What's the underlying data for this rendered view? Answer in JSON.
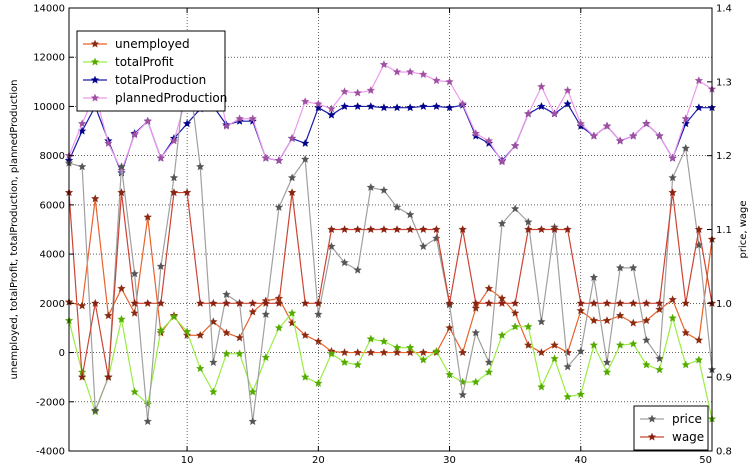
{
  "chart_data": {
    "type": "line",
    "x": [
      1,
      2,
      3,
      4,
      5,
      6,
      7,
      8,
      9,
      10,
      11,
      12,
      13,
      14,
      15,
      16,
      17,
      18,
      19,
      20,
      21,
      22,
      23,
      24,
      25,
      26,
      27,
      28,
      29,
      30,
      31,
      32,
      33,
      34,
      35,
      36,
      37,
      38,
      39,
      40,
      41,
      42,
      43,
      44,
      45,
      46,
      47,
      48,
      49,
      50
    ],
    "xlim": [
      1,
      50
    ],
    "xticks": [
      10,
      20,
      30,
      40,
      50
    ],
    "left_axis": {
      "ylabel": "unemployed, totalProfit, totalProduction, plannedProduction",
      "ylim": [
        -4000,
        14000
      ],
      "yticks": [
        -4000,
        -2000,
        0,
        2000,
        4000,
        6000,
        8000,
        10000,
        12000,
        14000
      ]
    },
    "right_axis": {
      "ylabel": "price, wage",
      "ylim": [
        0.8,
        1.4
      ],
      "yticks": [
        0.8,
        0.9,
        1.0,
        1.1,
        1.2,
        1.3,
        1.4
      ]
    },
    "series": [
      {
        "name": "unemployed",
        "axis": "left",
        "color": "#e8622a",
        "marker_color": "#8b2a10",
        "values": [
          2050,
          1900,
          6250,
          1500,
          2600,
          1600,
          5500,
          800,
          1500,
          700,
          700,
          1250,
          800,
          600,
          1650,
          2100,
          2200,
          1200,
          700,
          450,
          50,
          0,
          0,
          0,
          0,
          0,
          0,
          0,
          0,
          1000,
          0,
          1800,
          2600,
          2200,
          1600,
          300,
          0,
          300,
          0,
          1700,
          1300,
          1300,
          1500,
          1200,
          1300,
          1750,
          2150,
          800,
          500,
          4600
        ]
      },
      {
        "name": "totalProfit",
        "axis": "left",
        "color": "#99ee44",
        "marker_color": "#55aa00",
        "values": [
          1300,
          -800,
          -2400,
          -1000,
          1350,
          -1600,
          -2100,
          900,
          1450,
          850,
          -650,
          -1600,
          -50,
          -50,
          -1600,
          -200,
          1000,
          1600,
          -1000,
          -1250,
          -50,
          -400,
          -500,
          550,
          450,
          200,
          200,
          -300,
          50,
          -900,
          -1200,
          -1200,
          -800,
          700,
          1050,
          1050,
          -1400,
          -250,
          -1800,
          -1700,
          300,
          -800,
          300,
          350,
          -500,
          -700,
          1400,
          -500,
          -300,
          -2700
        ]
      },
      {
        "name": "totalProduction",
        "axis": "left",
        "color": "#1a1aaa",
        "marker_color": "#00008b",
        "values": [
          7800,
          9000,
          10000,
          8600,
          7300,
          8900,
          9400,
          7900,
          8700,
          9300,
          9900,
          10000,
          9250,
          9400,
          9400,
          7900,
          7800,
          8700,
          8500,
          9950,
          9650,
          10000,
          10000,
          10000,
          9950,
          9950,
          9950,
          10000,
          10000,
          9950,
          10050,
          8800,
          8500,
          7800,
          8400,
          9700,
          10000,
          9700,
          10100,
          9200,
          8800,
          9200,
          8600,
          8800,
          9300,
          8800,
          7900,
          9300,
          9950,
          9950
        ]
      },
      {
        "name": "plannedProduction",
        "axis": "left",
        "color": "#ee99ee",
        "marker_color": "#a050a0",
        "values": [
          8000,
          9300,
          10500,
          8500,
          7400,
          8850,
          9400,
          7900,
          8600,
          10500,
          11800,
          11800,
          9200,
          9500,
          9500,
          7900,
          7800,
          8700,
          10200,
          10100,
          9900,
          10600,
          10550,
          10650,
          11700,
          11400,
          11400,
          11300,
          11050,
          11000,
          10100,
          8900,
          8600,
          7750,
          8400,
          9700,
          10800,
          9700,
          10650,
          9300,
          8800,
          9200,
          8600,
          8800,
          9300,
          8800,
          7900,
          9500,
          11050,
          10700
        ]
      },
      {
        "name": "price",
        "axis": "right",
        "color": "#a0a0a0",
        "marker_color": "#555555",
        "values": [
          1.19,
          1.185,
          0.855,
          0.9,
          1.185,
          1.04,
          0.84,
          1.05,
          1.17,
          1.33,
          1.185,
          0.92,
          1.012,
          1.0,
          0.84,
          0.985,
          1.13,
          1.17,
          1.195,
          0.985,
          1.077,
          1.055,
          1.045,
          1.157,
          1.153,
          1.13,
          1.12,
          1.077,
          1.088,
          0.998,
          0.876,
          0.96,
          0.92,
          1.108,
          1.128,
          1.11,
          0.975,
          1.103,
          0.914,
          0.935,
          1.035,
          0.92,
          1.048,
          1.048,
          0.95,
          0.925,
          1.17,
          1.21,
          1.079,
          0.91
        ]
      },
      {
        "name": "wage",
        "axis": "right",
        "color": "#cc4433",
        "marker_color": "#882211",
        "values": [
          1.15,
          0.9,
          1.0,
          0.9,
          1.15,
          1.0,
          1.0,
          1.0,
          1.15,
          1.15,
          1.0,
          1.0,
          1.0,
          1.0,
          1.0,
          1.0,
          1.0,
          1.15,
          1.0,
          1.0,
          1.1,
          1.1,
          1.1,
          1.1,
          1.1,
          1.1,
          1.1,
          1.1,
          1.1,
          1.0,
          1.1,
          1.0,
          1.0,
          1.0,
          1.0,
          1.1,
          1.1,
          1.1,
          1.1,
          1.0,
          1.0,
          1.0,
          1.0,
          1.0,
          1.0,
          1.0,
          1.15,
          1.0,
          1.1,
          1.0
        ]
      }
    ],
    "legend_left": {
      "placement": "top-left",
      "entries": [
        "unemployed",
        "totalProfit",
        "totalProduction",
        "plannedProduction"
      ]
    },
    "legend_right": {
      "placement": "bottom-right",
      "entries": [
        "price",
        "wage"
      ]
    },
    "grid": true
  }
}
